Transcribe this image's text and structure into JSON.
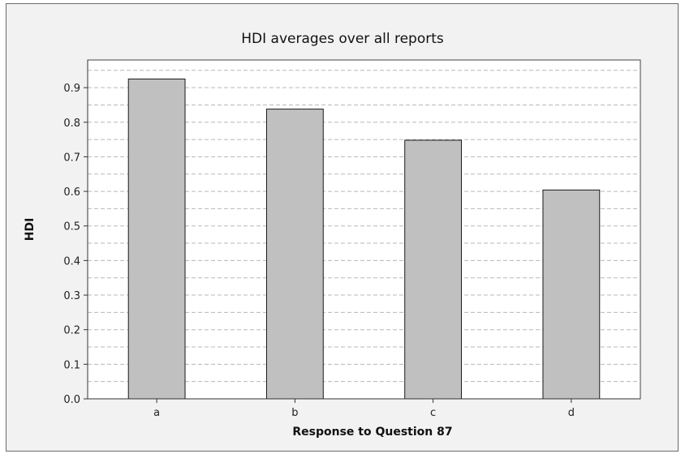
{
  "chart_data": {
    "type": "bar",
    "title": "HDI averages over all reports",
    "xlabel": "Response to Question 87",
    "ylabel": "HDI",
    "categories": [
      "a",
      "b",
      "c",
      "d"
    ],
    "values": [
      0.925,
      0.838,
      0.748,
      0.604
    ],
    "ylim": [
      0,
      0.98
    ],
    "yticks": [
      0.0,
      0.1,
      0.2,
      0.3,
      0.4,
      0.5,
      0.6,
      0.7,
      0.8,
      0.9
    ],
    "ytick_labels": [
      "0.0",
      "0.1",
      "0.2",
      "0.3",
      "0.4",
      "0.5",
      "0.6",
      "0.7",
      "0.8",
      "0.9"
    ],
    "minor_grid_step": 0.05,
    "grid": true,
    "legend": "none",
    "colors": {
      "bar_fill": "#c0c0c0",
      "bar_stroke": "#1a1a1a",
      "grid": "#b8b8b8",
      "plot_bg": "#ffffff",
      "frame_bg": "#f2f2f2"
    }
  }
}
